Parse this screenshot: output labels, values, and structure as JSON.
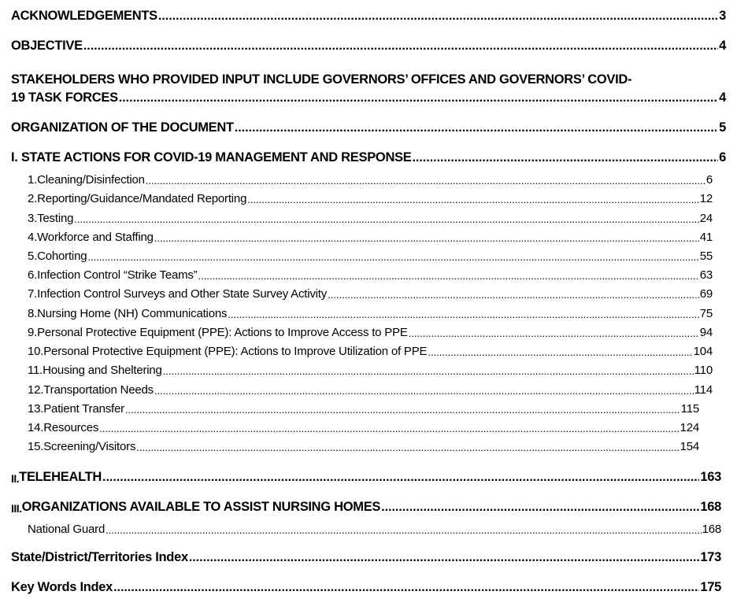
{
  "toc": {
    "acknowledgements": {
      "label": "ACKNOWLEDGEMENTS",
      "page": "3"
    },
    "objective": {
      "label": "OBJECTIVE",
      "page": "4"
    },
    "stakeholders": {
      "label_line1": "STAKEHOLDERS WHO PROVIDED INPUT INCLUDE GOVERNORS’ OFFICES AND GOVERNORS’ COVID-",
      "label_line2": "19 TASK FORCES",
      "page": "4"
    },
    "organization": {
      "label": "ORGANIZATION OF THE DOCUMENT",
      "page": "5"
    },
    "section1": {
      "label": "I. STATE ACTIONS FOR COVID-19 MANAGEMENT AND RESPONSE",
      "page": "6",
      "items": [
        {
          "label": "1.Cleaning/Disinfection",
          "page": "6"
        },
        {
          "label": "2.Reporting/Guidance/Mandated Reporting",
          "page": "12"
        },
        {
          "label": "3.Testing",
          "page": "24"
        },
        {
          "label": "4.Workforce and Staffing",
          "page": "41"
        },
        {
          "label": "5.Cohorting",
          "page": "55"
        },
        {
          "label": "6.Infection Control “Strike Teams”",
          "page": "63"
        },
        {
          "label": "7.Infection Control Surveys and Other State Survey Activity",
          "page": "69"
        },
        {
          "label": "8.Nursing Home (NH) Communications",
          "page": "75"
        },
        {
          "label": "9.Personal Protective Equipment (PPE): Actions to Improve Access to PPE",
          "page": "94"
        },
        {
          "label": "10.Personal Protective Equipment (PPE): Actions to Improve Utilization of PPE",
          "page": "104"
        },
        {
          "label": "11.Housing and Sheltering",
          "page": "110"
        },
        {
          "label": "12.Transportation Needs",
          "page": "114"
        },
        {
          "label": "13.Patient Transfer",
          "page": "115"
        },
        {
          "label": "14.Resources",
          "page": "124"
        },
        {
          "label": "15.Screening/Visitors",
          "page": "154"
        }
      ]
    },
    "section2": {
      "numeral": "II.",
      "label": "TELEHEALTH",
      "page": "163"
    },
    "section3": {
      "numeral": "III.",
      "label": "ORGANIZATIONS AVAILABLE TO ASSIST NURSING HOMES",
      "page": "168",
      "items": [
        {
          "label": "National Guard",
          "page": "168"
        }
      ]
    },
    "state_index": {
      "label": "State/District/Territories Index",
      "page": "173"
    },
    "keywords_index": {
      "label": "Key Words Index",
      "page": "175"
    }
  }
}
